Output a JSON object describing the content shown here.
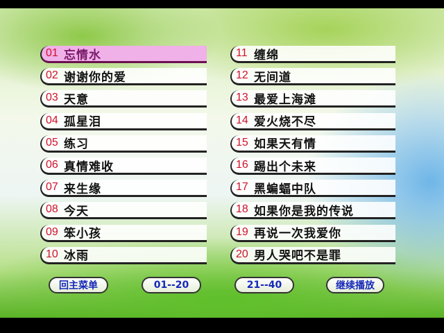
{
  "songs_left": [
    {
      "num": "01",
      "title": "忘情水",
      "selected": true
    },
    {
      "num": "02",
      "title": "谢谢你的爱"
    },
    {
      "num": "03",
      "title": "天意"
    },
    {
      "num": "04",
      "title": "孤星泪"
    },
    {
      "num": "05",
      "title": "练习"
    },
    {
      "num": "06",
      "title": "真情难收"
    },
    {
      "num": "07",
      "title": "来生缘"
    },
    {
      "num": "08",
      "title": "今天"
    },
    {
      "num": "09",
      "title": "笨小孩"
    },
    {
      "num": "10",
      "title": "冰雨"
    }
  ],
  "songs_right": [
    {
      "num": "11",
      "title": "缠绵"
    },
    {
      "num": "12",
      "title": "无间道"
    },
    {
      "num": "13",
      "title": "最爱上海滩"
    },
    {
      "num": "14",
      "title": "爱火烧不尽"
    },
    {
      "num": "15",
      "title": "如果天有情"
    },
    {
      "num": "16",
      "title": "踢出个未来"
    },
    {
      "num": "17",
      "title": "黑蝙蝠中队"
    },
    {
      "num": "18",
      "title": "如果你是我的传说"
    },
    {
      "num": "19",
      "title": "再说一次我爱你"
    },
    {
      "num": "20",
      "title": "男人哭吧不是罪"
    }
  ],
  "buttons": {
    "main_menu": "回主菜单",
    "page1": "01--20",
    "page2": "21--40",
    "resume": "继续播放"
  },
  "colors": {
    "selected_bg": "#f0b0e8",
    "number": "#d0102a",
    "button_text": "#1628b8"
  }
}
